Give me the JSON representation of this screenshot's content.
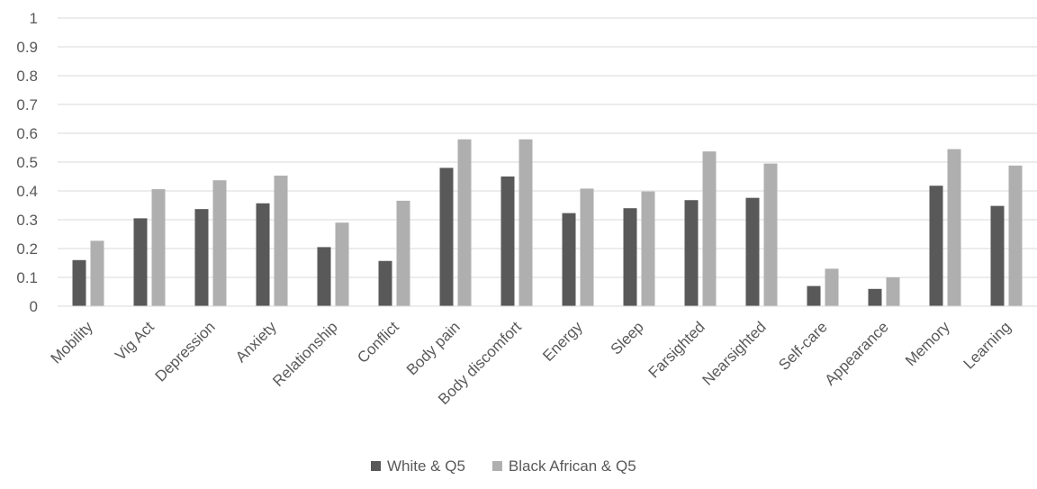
{
  "chart_data": {
    "type": "bar",
    "title": "",
    "xlabel": "",
    "ylabel": "",
    "ylim": [
      0,
      1
    ],
    "yticks": [
      "0",
      "0.1",
      "0.2",
      "0.3",
      "0.4",
      "0.5",
      "0.6",
      "0.7",
      "0.8",
      "0.9",
      "1"
    ],
    "grid": true,
    "legend_position": "bottom",
    "categories": [
      "Mobility",
      "Vig Act",
      "Depression",
      "Anxiety",
      "Relationship",
      "Conflict",
      "Body pain",
      "Body discomfort",
      "Energy",
      "Sleep",
      "Farsighted",
      "Nearsighted",
      "Self-care",
      "Appearance",
      "Memory",
      "Learning"
    ],
    "series": [
      {
        "name": "White & Q5",
        "color": "#595959",
        "values": [
          0.16,
          0.305,
          0.337,
          0.357,
          0.205,
          0.157,
          0.48,
          0.45,
          0.323,
          0.34,
          0.368,
          0.376,
          0.07,
          0.06,
          0.418,
          0.348
        ]
      },
      {
        "name": "Black African & Q5",
        "color": "#afafaf",
        "values": [
          0.227,
          0.406,
          0.437,
          0.453,
          0.29,
          0.366,
          0.579,
          0.579,
          0.408,
          0.398,
          0.537,
          0.495,
          0.13,
          0.1,
          0.545,
          0.488
        ]
      }
    ]
  }
}
